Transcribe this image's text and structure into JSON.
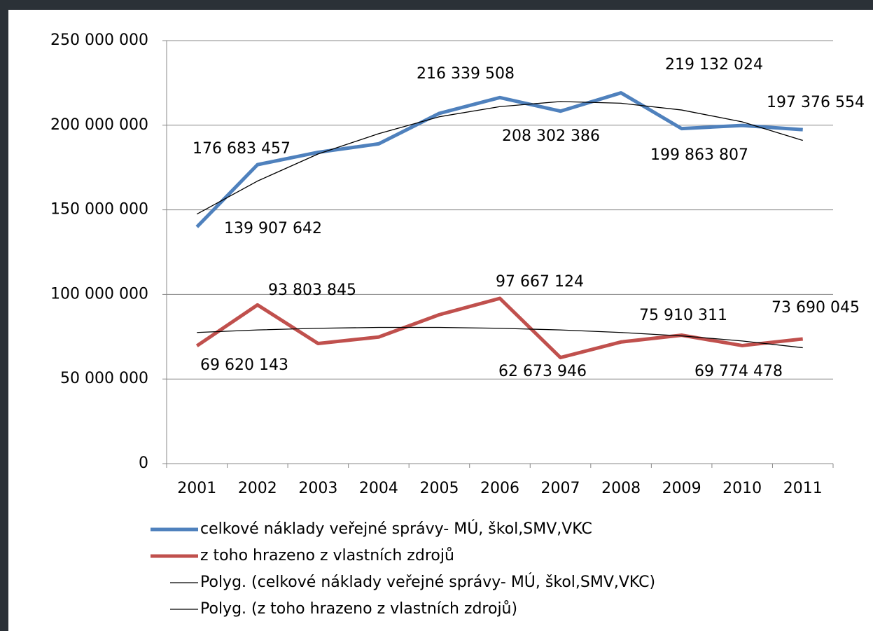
{
  "chart_data": {
    "type": "line",
    "categories": [
      "2001",
      "2002",
      "2003",
      "2004",
      "2005",
      "2006",
      "2007",
      "2008",
      "2009",
      "2010",
      "2011"
    ],
    "series": [
      {
        "name": "celkové náklady veřejné správy- MÚ, škol,SMV,VKC",
        "color": "#4f81bd",
        "values": [
          139907642,
          176683457,
          184000000,
          189000000,
          207000000,
          216339508,
          208302386,
          219132024,
          198000000,
          199863807,
          197376554
        ],
        "value_labels": [
          "139 907 642",
          "176 683 457",
          null,
          null,
          null,
          "216 339 508",
          "208 302 386",
          "219 132 024",
          null,
          "199 863 807",
          "197 376 554"
        ]
      },
      {
        "name": "z toho hrazeno z vlastních zdrojů",
        "color": "#c0504d",
        "values": [
          69620143,
          93803845,
          71000000,
          74800000,
          88000000,
          97667124,
          62673946,
          71900000,
          75910311,
          69774478,
          73690045
        ],
        "value_labels": [
          "69 620 143",
          "93 803 845",
          null,
          null,
          null,
          "97 667 124",
          "62 673 946",
          null,
          "75 910 311",
          "69 774 478",
          "73 690 045"
        ]
      },
      {
        "name": "Polyg. (celkové náklady veřejné správy- MÚ, škol,SMV,VKC)",
        "color": "#000000",
        "values": [
          147500000,
          167000000,
          183000000,
          195000000,
          205000000,
          211000000,
          214000000,
          213000000,
          209000000,
          202000000,
          191000000
        ]
      },
      {
        "name": "Polyg. (z toho hrazeno z vlastních zdrojů)",
        "color": "#000000",
        "values": [
          77500000,
          79000000,
          80000000,
          80500000,
          80500000,
          80000000,
          79000000,
          77500000,
          75500000,
          72500000,
          68500000
        ]
      }
    ],
    "ylim": [
      0,
      250000000
    ],
    "yticks": [
      0,
      {
        "value": 50000000,
        "label": "50 000 000"
      },
      {
        "value": 100000000,
        "label": "100 000 000"
      },
      {
        "value": 150000000,
        "label": "150 000 000"
      },
      {
        "value": 200000000,
        "label": "200 000 000"
      },
      {
        "value": 250000000,
        "label": "250 000 000"
      }
    ],
    "grid": true
  }
}
